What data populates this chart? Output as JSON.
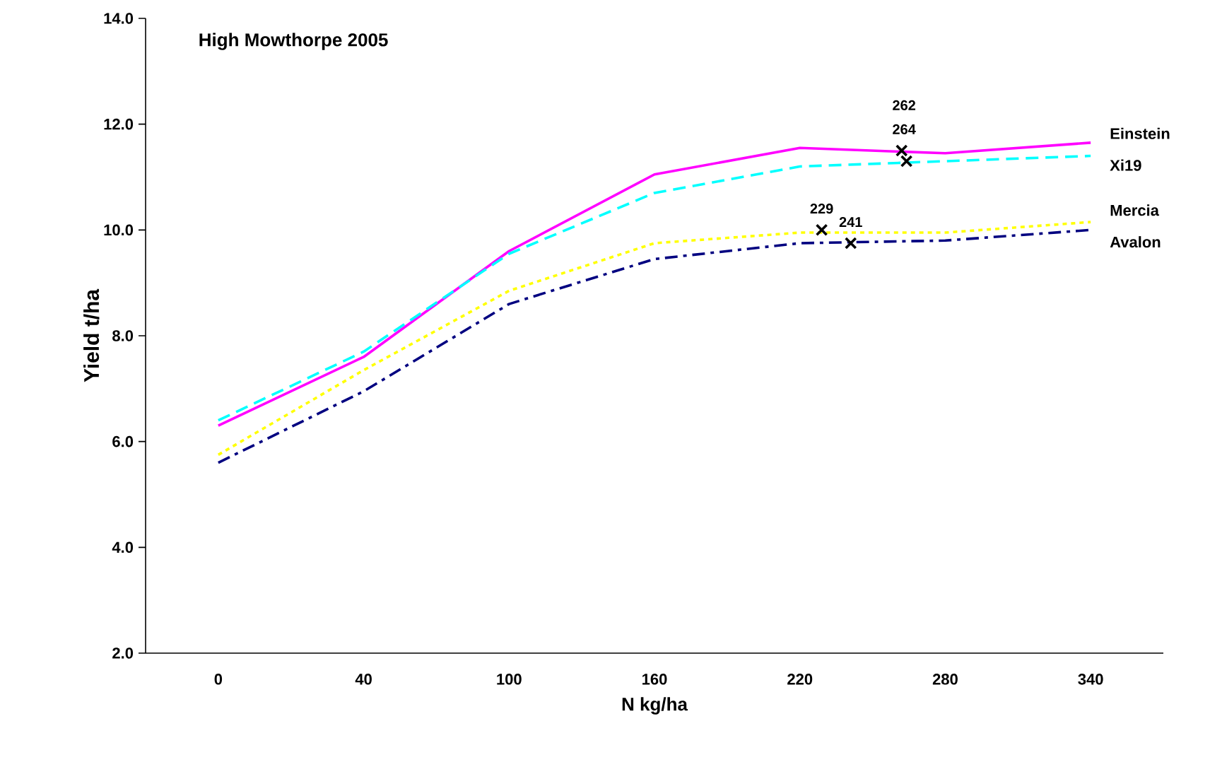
{
  "chart_data": {
    "type": "line",
    "title": "High Mowthorpe 2005",
    "xlabel": "N kg/ha",
    "ylabel": "Yield t/ha",
    "categories": [
      "0",
      "40",
      "100",
      "160",
      "220",
      "280",
      "340"
    ],
    "ylim": [
      2,
      14
    ],
    "yticks": [
      {
        "value": 2,
        "label": "2.0"
      },
      {
        "value": 4,
        "label": "4.0"
      },
      {
        "value": 6,
        "label": "6.0"
      },
      {
        "value": 8,
        "label": "8.0"
      },
      {
        "value": 10,
        "label": "10.0"
      },
      {
        "value": 12,
        "label": "12.0"
      },
      {
        "value": 14,
        "label": "14.0"
      }
    ],
    "grid": false,
    "legend": false,
    "series": [
      {
        "name": "Einstein",
        "color": "#ff00ff",
        "line_style": "solid",
        "values": [
          6.3,
          7.6,
          9.6,
          11.05,
          11.55,
          11.45,
          11.65
        ]
      },
      {
        "name": "Xi19",
        "color": "#00ffff",
        "line_style": "dashed",
        "values": [
          6.4,
          7.7,
          9.55,
          10.7,
          11.2,
          11.3,
          11.4
        ]
      },
      {
        "name": "Mercia",
        "color": "#ffff00",
        "line_style": "dotted",
        "values": [
          5.75,
          7.35,
          8.85,
          9.75,
          9.95,
          9.95,
          10.15
        ]
      },
      {
        "name": "Avalon",
        "color": "#000080",
        "line_style": "dashdot",
        "values": [
          5.6,
          6.95,
          8.6,
          9.45,
          9.75,
          9.8,
          10.0
        ]
      }
    ],
    "annotations": [
      {
        "text": "229",
        "y": 10.0
      },
      {
        "text": "241",
        "y": 9.75
      },
      {
        "text": "262",
        "y": 11.5
      },
      {
        "text": "264",
        "y": 11.3
      }
    ]
  }
}
